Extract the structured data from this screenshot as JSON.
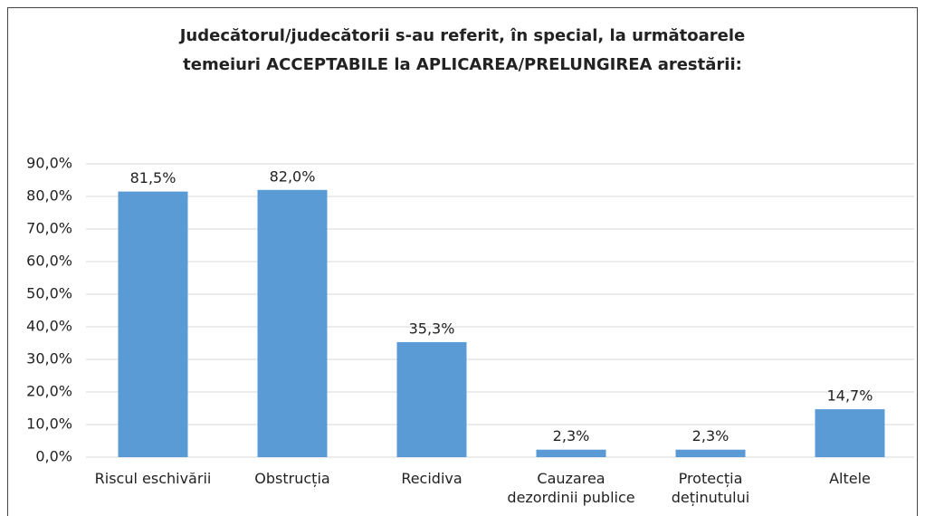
{
  "chart_data": {
    "type": "bar",
    "title": "Judecătorul/judecătorii s-au referit, în special, la următoarele\ntemeiuri ACCEPTABILE la APLICAREA/PRELUNGIREA arestării:",
    "categories": [
      "Riscul eschivării",
      "Obstrucția",
      "Recidiva",
      "Cauzarea\ndezordinii publice",
      "Protecția\ndeținutului",
      "Altele"
    ],
    "values": [
      81.5,
      82.0,
      35.3,
      2.3,
      2.3,
      14.7
    ],
    "value_labels": [
      "81,5%",
      "82,0%",
      "35,3%",
      "2,3%",
      "2,3%",
      "14,7%"
    ],
    "color": "#5b9bd5",
    "ylim": [
      0,
      90
    ],
    "yticks": [
      {
        "value": 0,
        "label": "0,0%"
      },
      {
        "value": 10,
        "label": "10,0%"
      },
      {
        "value": 20,
        "label": "20,0%"
      },
      {
        "value": 30,
        "label": "30,0%"
      },
      {
        "value": 40,
        "label": "40,0%"
      },
      {
        "value": 50,
        "label": "50,0%"
      },
      {
        "value": 60,
        "label": "60,0%"
      },
      {
        "value": 70,
        "label": "70,0%"
      },
      {
        "value": 80,
        "label": "80,0%"
      },
      {
        "value": 90,
        "label": "90,0%"
      }
    ],
    "grid": true
  }
}
